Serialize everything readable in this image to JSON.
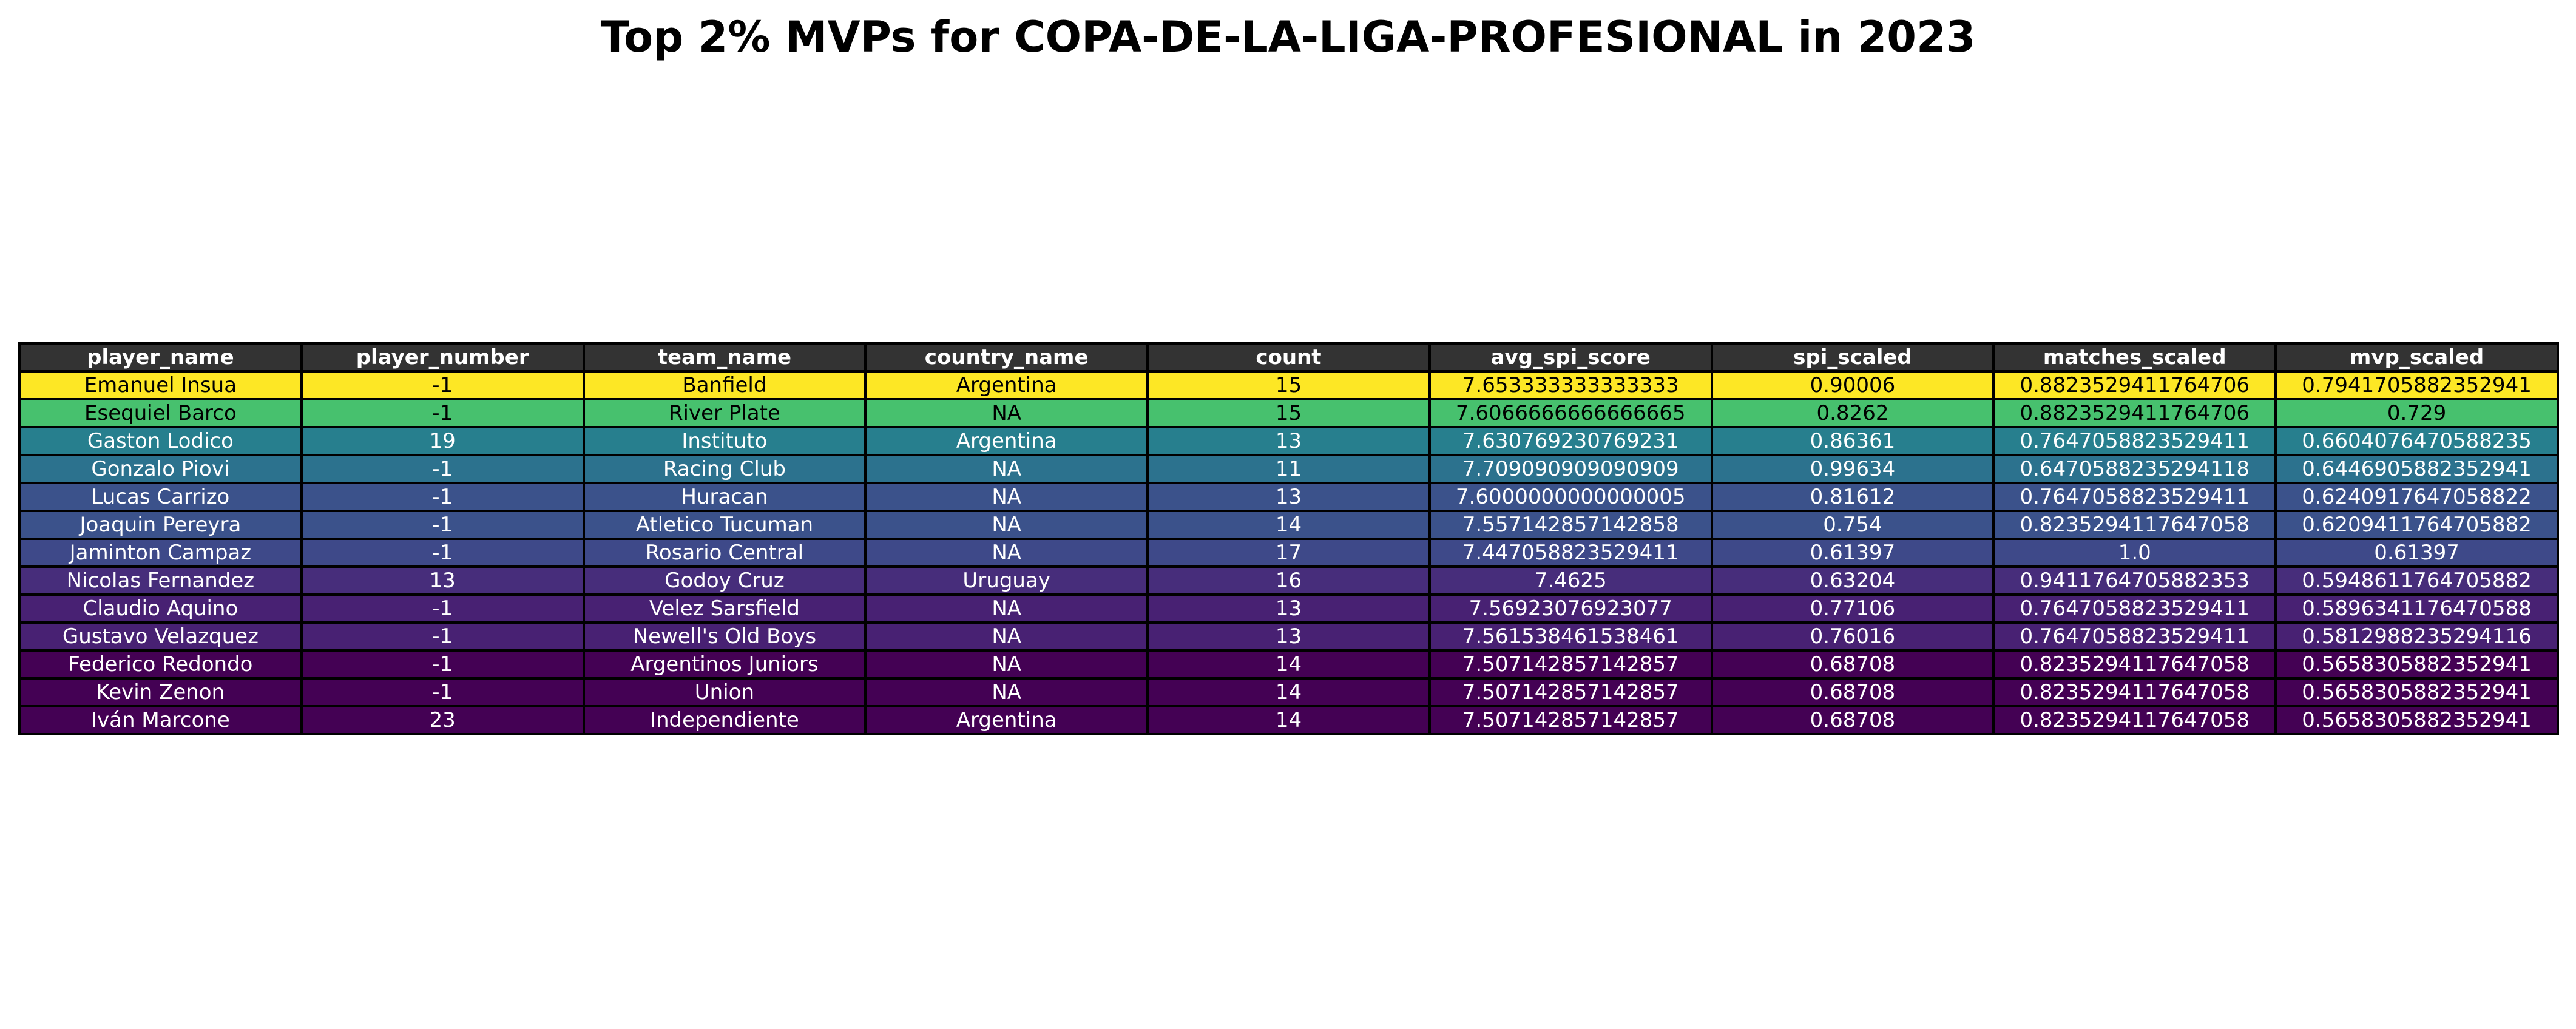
{
  "chart_data": {
    "type": "table",
    "title": "Top 2% MVPs for COPA-DE-LA-LIGA-PROFESIONAL in 2023",
    "header_color": "#333333",
    "columns": [
      "player_name",
      "player_number",
      "team_name",
      "country_name",
      "count",
      "avg_spi_score",
      "spi_scaled",
      "matches_scaled",
      "mvp_scaled"
    ],
    "rows": [
      {
        "cells": [
          "Emanuel Insua",
          "-1",
          "Banfield",
          "Argentina",
          "15",
          "7.653333333333333",
          "0.90006",
          "0.8823529411764706",
          "0.7941705882352941"
        ],
        "color": "#fde725",
        "text_color": "#000000"
      },
      {
        "cells": [
          "Esequiel Barco",
          "-1",
          "River Plate",
          "NA",
          "15",
          "7.6066666666666665",
          "0.8262",
          "0.8823529411764706",
          "0.729"
        ],
        "color": "#47c16e",
        "text_color": "#000000"
      },
      {
        "cells": [
          "Gaston Lodico",
          "19",
          "Instituto",
          "Argentina",
          "13",
          "7.630769230769231",
          "0.86361",
          "0.7647058823529411",
          "0.6604076470588235"
        ],
        "color": "#277f8e",
        "text_color": "#ffffff"
      },
      {
        "cells": [
          "Gonzalo Piovi",
          "-1",
          "Racing Club",
          "NA",
          "11",
          "7.709090909090909",
          "0.99634",
          "0.6470588235294118",
          "0.6446905882352941"
        ],
        "color": "#2c728e",
        "text_color": "#ffffff"
      },
      {
        "cells": [
          "Lucas Carrizo",
          "-1",
          "Huracan",
          "NA",
          "13",
          "7.6000000000000005",
          "0.81612",
          "0.7647058823529411",
          "0.6240917647058822"
        ],
        "color": "#3b528b",
        "text_color": "#ffffff"
      },
      {
        "cells": [
          "Joaquin Pereyra",
          "-1",
          "Atletico Tucuman",
          "NA",
          "14",
          "7.557142857142858",
          "0.754",
          "0.8235294117647058",
          "0.6209411764705882"
        ],
        "color": "#3b528b",
        "text_color": "#ffffff"
      },
      {
        "cells": [
          "Jaminton Campaz",
          "-1",
          "Rosario Central",
          "NA",
          "17",
          "7.447058823529411",
          "0.61397",
          "1.0",
          "0.61397"
        ],
        "color": "#3e4989",
        "text_color": "#ffffff"
      },
      {
        "cells": [
          "Nicolas Fernandez",
          "13",
          "Godoy Cruz",
          "Uruguay",
          "16",
          "7.4625",
          "0.63204",
          "0.9411764705882353",
          "0.5948611764705882"
        ],
        "color": "#472d7b",
        "text_color": "#ffffff"
      },
      {
        "cells": [
          "Claudio Aquino",
          "-1",
          "Velez Sarsfield",
          "NA",
          "13",
          "7.56923076923077",
          "0.77106",
          "0.7647058823529411",
          "0.5896341176470588"
        ],
        "color": "#482173",
        "text_color": "#ffffff"
      },
      {
        "cells": [
          "Gustavo Velazquez",
          "-1",
          "Newell's Old Boys",
          "NA",
          "13",
          "7.561538461538461",
          "0.76016",
          "0.7647058823529411",
          "0.5812988235294116"
        ],
        "color": "#482173",
        "text_color": "#ffffff"
      },
      {
        "cells": [
          "Federico Redondo",
          "-1",
          "Argentinos Juniors",
          "NA",
          "14",
          "7.507142857142857",
          "0.68708",
          "0.8235294117647058",
          "0.5658305882352941"
        ],
        "color": "#440154",
        "text_color": "#ffffff"
      },
      {
        "cells": [
          "Kevin Zenon",
          "-1",
          "Union",
          "NA",
          "14",
          "7.507142857142857",
          "0.68708",
          "0.8235294117647058",
          "0.5658305882352941"
        ],
        "color": "#440154",
        "text_color": "#ffffff"
      },
      {
        "cells": [
          "Iván Marcone",
          "23",
          "Independiente",
          "Argentina",
          "14",
          "7.507142857142857",
          "0.68708",
          "0.8235294117647058",
          "0.5658305882352941"
        ],
        "color": "#440154",
        "text_color": "#ffffff"
      }
    ]
  }
}
